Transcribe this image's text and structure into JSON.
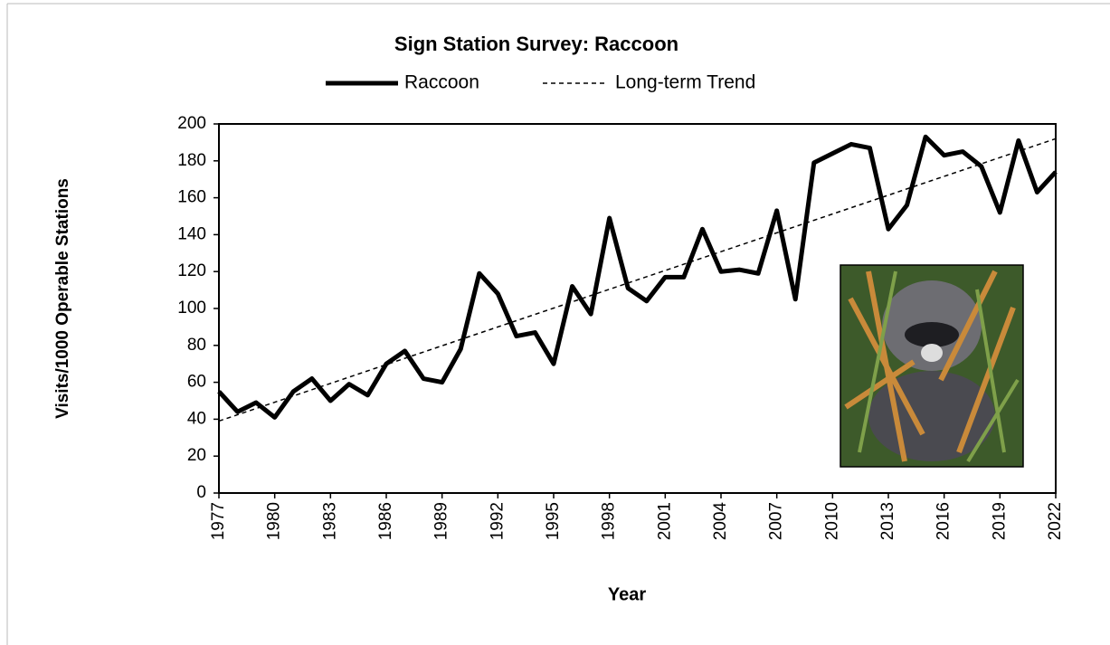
{
  "chart_data": {
    "type": "line",
    "title": "Sign Station Survey: Raccoon",
    "x_label": "Year",
    "y_label": "Visits/1000 Operable Stations",
    "x": [
      1977,
      1978,
      1979,
      1980,
      1981,
      1982,
      1983,
      1984,
      1985,
      1986,
      1987,
      1988,
      1989,
      1990,
      1991,
      1992,
      1993,
      1994,
      1995,
      1996,
      1997,
      1998,
      1999,
      2000,
      2001,
      2002,
      2003,
      2004,
      2005,
      2006,
      2007,
      2008,
      2009,
      2010,
      2011,
      2012,
      2013,
      2014,
      2015,
      2016,
      2017,
      2018,
      2019,
      2020,
      2021,
      2022
    ],
    "series": [
      {
        "name": "Raccoon",
        "color": "#000000",
        "style": "solid",
        "values": [
          55,
          44,
          49,
          41,
          55,
          62,
          50,
          59,
          53,
          70,
          77,
          62,
          60,
          78,
          119,
          108,
          85,
          87,
          70,
          112,
          97,
          149,
          111,
          104,
          117,
          117,
          143,
          120,
          121,
          119,
          153,
          105,
          179,
          184,
          189,
          187,
          143,
          156,
          193,
          183,
          185,
          177,
          152,
          191,
          163,
          174
        ]
      },
      {
        "name": "Long-term Trend",
        "color": "#000000",
        "style": "dashed",
        "x": [
          1977,
          2022
        ],
        "values": [
          39,
          192
        ]
      }
    ],
    "xlim": [
      1977,
      2022
    ],
    "xticks": [
      1977,
      1980,
      1983,
      1986,
      1989,
      1992,
      1995,
      1998,
      2001,
      2004,
      2007,
      2010,
      2013,
      2016,
      2019,
      2022
    ],
    "ylim": [
      0,
      200
    ],
    "yticks": [
      0,
      20,
      40,
      60,
      80,
      100,
      120,
      140,
      160,
      180,
      200
    ],
    "grid": false
  }
}
